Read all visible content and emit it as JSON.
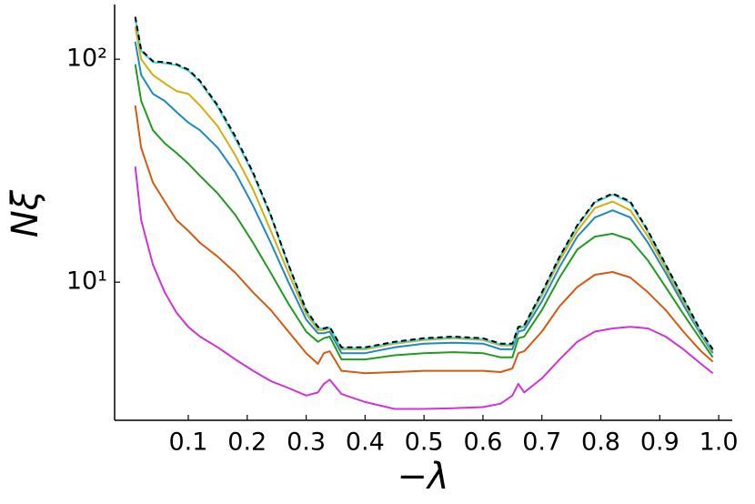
{
  "chart_data": {
    "type": "line",
    "xlabel": "−λ",
    "ylabel": "Nξ",
    "log_y": true,
    "xlim": [
      -0.025,
      1.023
    ],
    "ylim": [
      2.4,
      176
    ],
    "xticks": [
      0.1,
      0.2,
      0.3,
      0.4,
      0.5,
      0.6,
      0.7,
      0.8,
      0.9,
      {
        "value": 1,
        "label": "1.0"
      }
    ],
    "yticks": [
      {
        "value": 10,
        "label": "10¹"
      },
      {
        "value": 100,
        "label": "10²"
      }
    ],
    "x": [
      0.01,
      0.02,
      0.04,
      0.06,
      0.08,
      0.1,
      0.12,
      0.15,
      0.18,
      0.21,
      0.24,
      0.27,
      0.3,
      0.32,
      0.33,
      0.34,
      0.36,
      0.4,
      0.45,
      0.5,
      0.55,
      0.6,
      0.63,
      0.65,
      0.66,
      0.67,
      0.7,
      0.73,
      0.76,
      0.79,
      0.82,
      0.85,
      0.88,
      0.91,
      0.94,
      0.97,
      0.99
    ],
    "series": [
      {
        "color": "#d033d6",
        "linestyle": "solid",
        "values": [
          33,
          19,
          12,
          9,
          7.3,
          6.3,
          5.7,
          5.1,
          4.5,
          4,
          3.6,
          3.35,
          3.1,
          3.2,
          3.5,
          3.65,
          3.15,
          2.9,
          2.7,
          2.7,
          2.72,
          2.75,
          2.85,
          3.1,
          3.5,
          3.2,
          3.7,
          4.5,
          5.4,
          6,
          6.2,
          6.3,
          6.2,
          5.7,
          5,
          4.3,
          3.9
        ]
      },
      {
        "color": "#d45a12",
        "linestyle": "solid",
        "values": [
          62,
          40,
          28,
          23,
          19,
          17,
          15,
          13,
          11,
          9,
          7.5,
          6,
          4.8,
          4.3,
          4.8,
          4.9,
          4,
          3.9,
          3.95,
          4,
          4,
          4,
          3.95,
          4.1,
          4.8,
          4.9,
          6,
          7.8,
          9.5,
          10.8,
          11.1,
          10.5,
          9,
          7.5,
          6,
          4.9,
          4.4
        ]
      },
      {
        "color": "#1f9b1f",
        "linestyle": "solid",
        "values": [
          95,
          65,
          48,
          42,
          38,
          34,
          30,
          25,
          20,
          15,
          11,
          8,
          6,
          5.4,
          5.6,
          5.7,
          4.5,
          4.5,
          4.7,
          4.8,
          4.85,
          4.8,
          4.6,
          4.6,
          5.6,
          5.7,
          7.5,
          10.5,
          14,
          16,
          16.5,
          15.5,
          12.5,
          9.5,
          7.2,
          5.5,
          4.6
        ]
      },
      {
        "color": "#1f88c0",
        "linestyle": "solid",
        "values": [
          120,
          85,
          70,
          65,
          58,
          52,
          48,
          40,
          31,
          22,
          15,
          10,
          6.8,
          5.9,
          5.9,
          6,
          4.8,
          4.8,
          5.1,
          5.3,
          5.35,
          5.3,
          5.0,
          5.0,
          6,
          6.1,
          8.2,
          11.7,
          16,
          19.5,
          21,
          19.5,
          15,
          11,
          7.9,
          5.8,
          4.8
        ]
      },
      {
        "color": "#d4ad10",
        "linestyle": "solid",
        "values": [
          140,
          100,
          85,
          78,
          72,
          70,
          62,
          50,
          37,
          26,
          17,
          11,
          7.2,
          6.1,
          6.1,
          6.2,
          5,
          5,
          5.3,
          5.5,
          5.6,
          5.5,
          5.2,
          5.2,
          6.2,
          6.3,
          8.7,
          12.5,
          17,
          21.5,
          23,
          21,
          16,
          11.5,
          8.2,
          5.9,
          4.9
        ]
      },
      {
        "color": "#40d8d8",
        "linestyle": "solid",
        "values": [
          153,
          109,
          97,
          96,
          94,
          89,
          79,
          61,
          44,
          30.5,
          19.8,
          11.9,
          7.4,
          6.25,
          6.15,
          6.25,
          5.05,
          5.05,
          5.35,
          5.55,
          5.65,
          5.55,
          5.25,
          5.25,
          6.25,
          6.35,
          8.9,
          12.9,
          17.8,
          22.8,
          24.7,
          22.7,
          16.8,
          11.9,
          8.4,
          5.95,
          4.95
        ]
      },
      {
        "color": "#000000",
        "linestyle": "dashed",
        "values": [
          155,
          110,
          98,
          97,
          95,
          90,
          80,
          62,
          45,
          31,
          20,
          12,
          7.5,
          6.3,
          6.2,
          6.3,
          5.1,
          5.1,
          5.4,
          5.6,
          5.7,
          5.6,
          5.3,
          5.3,
          6.3,
          6.4,
          9,
          13,
          18,
          23,
          25,
          23,
          17,
          12,
          8.5,
          6,
          5
        ]
      }
    ]
  }
}
